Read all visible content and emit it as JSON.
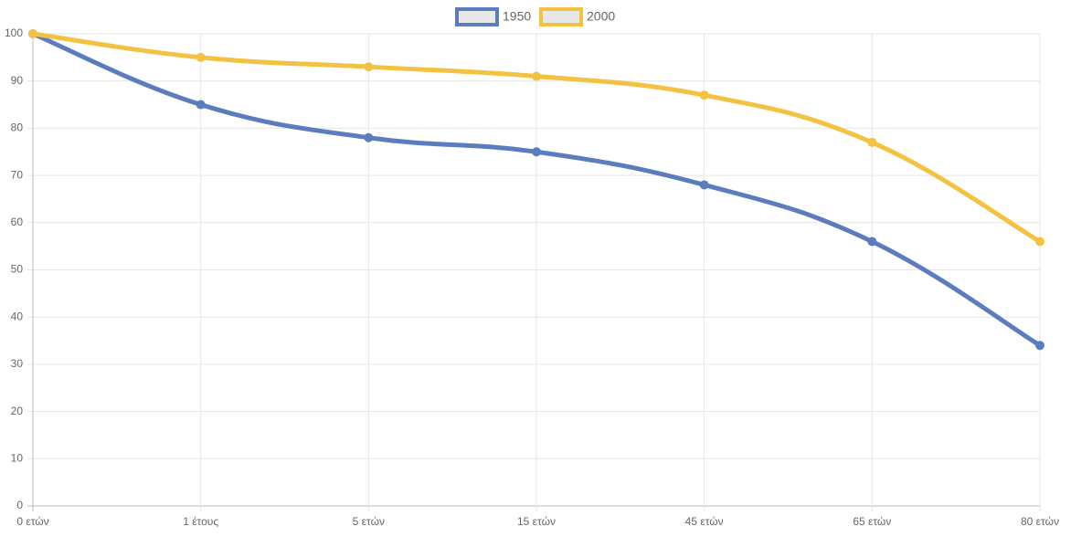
{
  "chart_data": {
    "type": "line",
    "categories": [
      "0 ετών",
      "1 έτους",
      "5 ετών",
      "15 ετών",
      "45 ετών",
      "65 ετών",
      "80 ετών"
    ],
    "series": [
      {
        "name": "1950",
        "color": "#5b7dbd",
        "values": [
          100,
          85,
          78,
          75,
          68,
          56,
          34
        ]
      },
      {
        "name": "2000",
        "color": "#f4c242",
        "values": [
          100,
          95,
          93,
          91,
          87,
          77,
          56
        ]
      }
    ],
    "ylim": [
      0,
      100
    ],
    "yticks": [
      0,
      10,
      20,
      30,
      40,
      50,
      60,
      70,
      80,
      90,
      100
    ],
    "grid": true,
    "legend": "top"
  }
}
